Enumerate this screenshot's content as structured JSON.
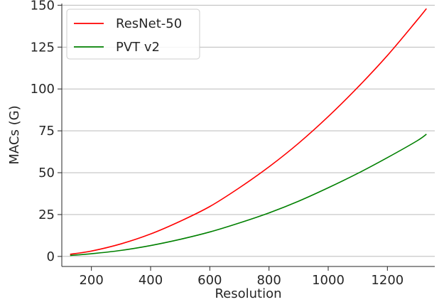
{
  "chart_data": {
    "type": "line",
    "title": "",
    "xlabel": "Resolution",
    "ylabel": "MACs (G)",
    "xlim": [
      100,
      1360
    ],
    "ylim": [
      -6,
      151
    ],
    "xticks": [
      200,
      400,
      600,
      800,
      1000,
      1200
    ],
    "yticks": [
      0,
      25,
      50,
      75,
      100,
      125,
      150
    ],
    "grid": "horizontal",
    "legend_position": "top-left",
    "series": [
      {
        "name": "ResNet-50",
        "color": "#ff0000",
        "x": [
          128,
          200,
          300,
          400,
          500,
          600,
          700,
          800,
          900,
          1000,
          1100,
          1200,
          1300,
          1332
        ],
        "y": [
          1.3,
          3.2,
          7.5,
          13.4,
          21.0,
          29.8,
          41.0,
          53.5,
          67.6,
          83.5,
          101.0,
          120.0,
          141.0,
          148.0
        ]
      },
      {
        "name": "PVT v2",
        "color": "#008000",
        "x": [
          128,
          200,
          300,
          400,
          500,
          600,
          700,
          800,
          900,
          1000,
          1100,
          1200,
          1300,
          1332
        ],
        "y": [
          0.6,
          1.6,
          3.6,
          6.5,
          10.2,
          14.6,
          20.0,
          26.0,
          33.0,
          41.0,
          49.6,
          59.0,
          69.0,
          73.0
        ]
      }
    ]
  }
}
